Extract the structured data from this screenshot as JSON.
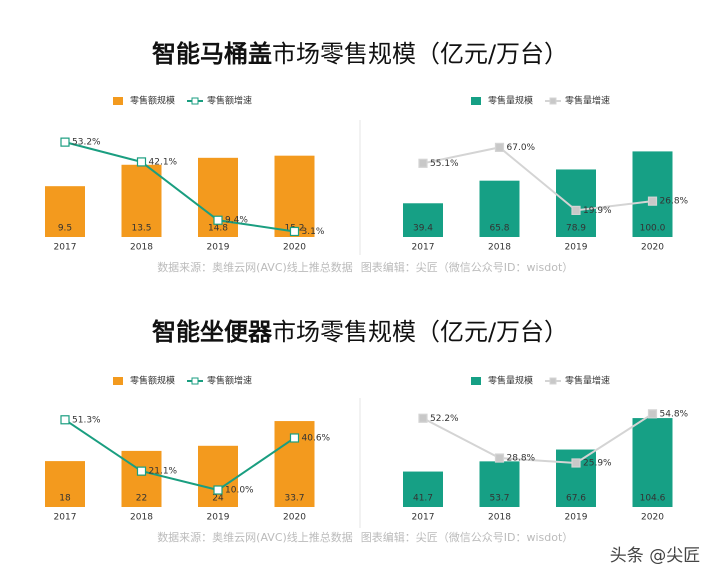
{
  "sections": [
    {
      "title_strong": "智能马桶盖",
      "title_rest": "市场零售规模（亿元/万台）"
    },
    {
      "title_strong": "智能坐便器",
      "title_rest": "市场零售规模（亿元/万台）"
    }
  ],
  "source_left": "数据来源：奥维云网(AVC)线上推总数据",
  "source_right": "图表编辑：尖匠（微信公众号ID：wisdot）",
  "watermark": "头条 @尖匠",
  "chart_data": [
    {
      "type": "bar",
      "categories": [
        "2017",
        "2018",
        "2019",
        "2020"
      ],
      "ylim": [
        0,
        20
      ],
      "y2lim": [
        0,
        60
      ],
      "series": [
        {
          "name": "零售额规模",
          "type": "bar",
          "color": "#f39a1e",
          "values": [
            9.5,
            13.5,
            14.8,
            15.2
          ]
        },
        {
          "name": "零售额增速",
          "type": "line",
          "axis": "y2",
          "color": "#1a9e80",
          "marker_fill": "#ffffff",
          "values": [
            53.2,
            42.1,
            9.4,
            3.1
          ],
          "value_labels": [
            "53.2%",
            "42.1%",
            "9.4%",
            "3.1%"
          ]
        }
      ]
    },
    {
      "type": "bar",
      "categories": [
        "2017",
        "2018",
        "2019",
        "2020"
      ],
      "ylim": [
        0,
        125
      ],
      "y2lim": [
        0,
        80
      ],
      "series": [
        {
          "name": "零售量规模",
          "type": "bar",
          "color": "#16a085",
          "values": [
            39.4,
            65.8,
            78.9,
            100
          ],
          "value_labels": [
            "39.4",
            "65.8",
            "78.9",
            "100.0"
          ]
        },
        {
          "name": "零售量增速",
          "type": "line",
          "axis": "y2",
          "color": "#d4d4d4",
          "marker_fill": "#c8c8c8",
          "values": [
            55.1,
            67.0,
            19.9,
            26.8
          ],
          "value_labels": [
            "55.1%",
            "67.0%",
            "19.9%",
            "26.8%"
          ]
        }
      ]
    },
    {
      "type": "bar",
      "categories": [
        "2017",
        "2018",
        "2019",
        "2020"
      ],
      "ylim": [
        0,
        40
      ],
      "y2lim": [
        0,
        60
      ],
      "series": [
        {
          "name": "零售额规模",
          "type": "bar",
          "color": "#f39a1e",
          "values": [
            18,
            22,
            24,
            33.7
          ]
        },
        {
          "name": "零售额增速",
          "type": "line",
          "axis": "y2",
          "color": "#1a9e80",
          "marker_fill": "#ffffff",
          "values": [
            51.3,
            21.1,
            10.0,
            40.6
          ],
          "value_labels": [
            "51.3%",
            "21.1%",
            "10.0%",
            "40.6%"
          ]
        }
      ]
    },
    {
      "type": "bar",
      "categories": [
        "2017",
        "2018",
        "2019",
        "2020"
      ],
      "ylim": [
        0,
        120
      ],
      "y2lim": [
        0,
        60
      ],
      "series": [
        {
          "name": "零售量规模",
          "type": "bar",
          "color": "#16a085",
          "values": [
            41.7,
            53.7,
            67.6,
            104.6
          ]
        },
        {
          "name": "零售量增速",
          "type": "line",
          "axis": "y2",
          "color": "#d4d4d4",
          "marker_fill": "#c8c8c8",
          "values": [
            52.2,
            28.8,
            25.9,
            54.8
          ],
          "value_labels": [
            "52.2%",
            "28.8%",
            "25.9%",
            "54.8%"
          ]
        }
      ]
    }
  ]
}
